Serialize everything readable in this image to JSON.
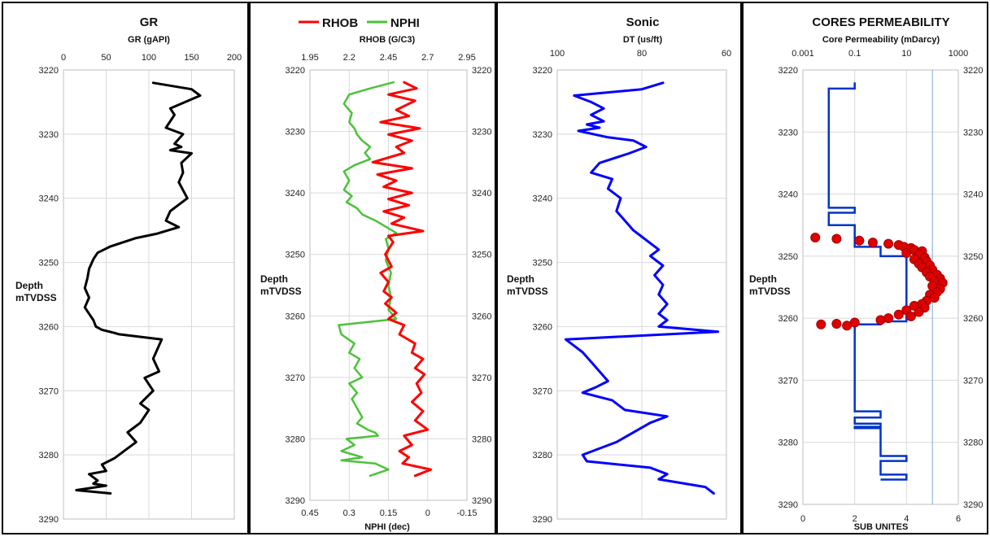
{
  "colors": {
    "gr": "#000000",
    "rhob": "#ff0000",
    "nphi": "#4cc23a",
    "sonic": "#0000ff",
    "perm_line": "#0033cc",
    "perm_points": "#e00000",
    "perm_points_edge": "#a00000",
    "grid": "#d9d9d9",
    "border": "#000000"
  },
  "chart_data": [
    {
      "type": "line",
      "title": "GR",
      "xlabel": "GR (gAPI)",
      "ylabel": "Depth\nmTVDSS",
      "xlim": [
        0,
        200
      ],
      "xticks": [
        "0",
        "50",
        "100",
        "150",
        "200"
      ],
      "ylim": [
        3220,
        3290
      ],
      "yticks": [
        "3220",
        "3230",
        "3240",
        "3250",
        "3260",
        "3270",
        "3280",
        "3290"
      ],
      "grid": true,
      "series": [
        {
          "name": "GR",
          "x": [
            105,
            150,
            160,
            125,
            130,
            120,
            140,
            130,
            138,
            125,
            150,
            138,
            140,
            135,
            145,
            125,
            120,
            135,
            110,
            85,
            55,
            40,
            35,
            30,
            28,
            25,
            30,
            25,
            30,
            35,
            38,
            45,
            60,
            65,
            115,
            105,
            112,
            95,
            105,
            90,
            100,
            90,
            75,
            85,
            70,
            60,
            45,
            50,
            30,
            40,
            35,
            50,
            15,
            55
          ],
          "y": [
            3222,
            3223,
            3224,
            3226,
            3227,
            3229,
            3230,
            3231.5,
            3232,
            3232.5,
            3233,
            3234.5,
            3236,
            3237.5,
            3240,
            3242,
            3243.5,
            3244.5,
            3245.5,
            3246.2,
            3247.5,
            3248.5,
            3249.5,
            3251,
            3252.5,
            3254,
            3255.5,
            3257,
            3258,
            3259,
            3260,
            3260.5,
            3261,
            3261.2,
            3262,
            3265,
            3267,
            3268,
            3270,
            3272,
            3273,
            3275,
            3276.5,
            3278,
            3279.5,
            3280.5,
            3281.5,
            3282.5,
            3283,
            3284,
            3284.5,
            3284.8,
            3285.5,
            3286
          ]
        }
      ]
    },
    {
      "type": "line",
      "legend": [
        "RHOB",
        "NPHI"
      ],
      "legend_position": "top",
      "xlabel": "RHOB (G/C3)",
      "xlabel_bottom": "NPHI (dec)",
      "ylabel": "Depth\nmTVDSS",
      "xlim_top": [
        1.95,
        2.95
      ],
      "xticks_top": [
        "1.95",
        "2.2",
        "2.45",
        "2.7",
        "2.95"
      ],
      "xlim_bottom": [
        0.45,
        -0.15
      ],
      "xticks_bottom": [
        "0.45",
        "0.3",
        "0.15",
        "0",
        "-0.15"
      ],
      "ylim": [
        3220,
        3290
      ],
      "yticks": [
        "3220",
        "3230",
        "3240",
        "3250",
        "3260",
        "3270",
        "3280",
        "3290"
      ],
      "grid": true,
      "series": [
        {
          "name": "RHOB",
          "axis": "top",
          "x": [
            2.55,
            2.63,
            2.45,
            2.62,
            2.5,
            2.58,
            2.4,
            2.65,
            2.45,
            2.6,
            2.5,
            2.55,
            2.35,
            2.6,
            2.38,
            2.5,
            2.42,
            2.6,
            2.45,
            2.58,
            2.42,
            2.55,
            2.47,
            2.67,
            2.45,
            2.48,
            2.43,
            2.47,
            2.4,
            2.45,
            2.42,
            2.47,
            2.43,
            2.5,
            2.45,
            2.55,
            2.52,
            2.62,
            2.6,
            2.67,
            2.62,
            2.68,
            2.63,
            2.66,
            2.6,
            2.67,
            2.62,
            2.7,
            2.55,
            2.6,
            2.52,
            2.58,
            2.54,
            2.72,
            2.62
          ],
          "y": [
            3222,
            3223,
            3224,
            3225,
            3226.5,
            3227.5,
            3228.5,
            3229.5,
            3230.5,
            3231.5,
            3232.5,
            3233.5,
            3235,
            3236,
            3237,
            3238,
            3239,
            3240,
            3241,
            3242,
            3243,
            3244,
            3245,
            3246.2,
            3247,
            3248,
            3250,
            3252,
            3253,
            3254.5,
            3256,
            3257,
            3258,
            3259.5,
            3260.5,
            3261.5,
            3263,
            3264.5,
            3266,
            3267,
            3268.5,
            3269.5,
            3271,
            3272.5,
            3274,
            3275.5,
            3277,
            3278.5,
            3279.5,
            3281,
            3282,
            3283,
            3284,
            3285,
            3286
          ]
        },
        {
          "name": "NPHI",
          "axis": "bottom",
          "x": [
            0.13,
            0.22,
            0.3,
            0.32,
            0.29,
            0.3,
            0.28,
            0.27,
            0.25,
            0.22,
            0.24,
            0.22,
            0.28,
            0.32,
            0.3,
            0.32,
            0.29,
            0.31,
            0.27,
            0.25,
            0.2,
            0.16,
            0.12,
            0.16,
            0.15,
            0.16,
            0.14,
            0.15,
            0.14,
            0.15,
            0.12,
            0.34,
            0.33,
            0.28,
            0.3,
            0.26,
            0.28,
            0.25,
            0.3,
            0.27,
            0.29,
            0.27,
            0.25,
            0.27,
            0.23,
            0.2,
            0.19,
            0.31,
            0.28,
            0.33,
            0.25,
            0.33,
            0.2,
            0.15,
            0.22
          ],
          "y": [
            3222,
            3223,
            3224,
            3225.5,
            3227,
            3228.5,
            3229.5,
            3230.5,
            3231.5,
            3232.5,
            3233.5,
            3234.5,
            3235.5,
            3236.5,
            3238,
            3239.5,
            3240.5,
            3241.5,
            3242.5,
            3243.5,
            3244.5,
            3245.5,
            3246.5,
            3247.5,
            3249,
            3251,
            3253,
            3255,
            3257,
            3259,
            3260.5,
            3261.5,
            3263,
            3264.5,
            3266,
            3267,
            3268.5,
            3270,
            3271,
            3272.5,
            3273.5,
            3275,
            3276.5,
            3277.5,
            3278.5,
            3279,
            3279.5,
            3280,
            3281,
            3282,
            3283,
            3283.5,
            3284,
            3285,
            3286
          ]
        }
      ]
    },
    {
      "type": "line",
      "title": "Sonic",
      "xlabel": "DT (us/ft)",
      "ylabel": "Depth\nmTVDSS",
      "xlim": [
        100,
        60
      ],
      "xticks": [
        "100",
        "80",
        "60"
      ],
      "ylim": [
        3220,
        3290
      ],
      "yticks": [
        "3220",
        "3230",
        "3240",
        "3250",
        "3260",
        "3270",
        "3280",
        "3290"
      ],
      "grid": true,
      "series": [
        {
          "name": "Sonic",
          "x": [
            75,
            80,
            96,
            92,
            89,
            92,
            89,
            93,
            90,
            95,
            88,
            82,
            79,
            83,
            90,
            92,
            87,
            88,
            85,
            86,
            84,
            82,
            80,
            78,
            76,
            78,
            75,
            77,
            75,
            76,
            74,
            76,
            74,
            76,
            62,
            98,
            96,
            94,
            92,
            90,
            88,
            91,
            94,
            87,
            84,
            74,
            78,
            86,
            94,
            93,
            78,
            74,
            76,
            65,
            63
          ],
          "y": [
            3222,
            3223,
            3224,
            3225,
            3226,
            3227,
            3228,
            3228.5,
            3229,
            3229.5,
            3230.5,
            3231,
            3232,
            3233,
            3234.5,
            3236,
            3237,
            3238.5,
            3240,
            3242,
            3243.5,
            3245,
            3246,
            3247,
            3248,
            3249,
            3250.5,
            3252,
            3253.5,
            3255,
            3256.5,
            3258,
            3259,
            3260,
            3260.8,
            3262,
            3263,
            3264,
            3265.5,
            3267,
            3268.5,
            3269.5,
            3270.3,
            3271.5,
            3273,
            3274,
            3275,
            3278,
            3280,
            3281,
            3282,
            3283,
            3283.8,
            3285,
            3286
          ]
        }
      ]
    },
    {
      "type": "scatter",
      "title": "CORES PERMEABILITY",
      "xlabel": "Core Permeability (mDarcy)",
      "xlabel_bottom": "SUB UNITES",
      "ylabel": "Depth\nmTVDSS",
      "xscale_top": "log",
      "xlim_top": [
        0.001,
        1000
      ],
      "xticks_top": [
        "0.001",
        "0.1",
        "10",
        "1000"
      ],
      "xlim_bottom": [
        0,
        6
      ],
      "xticks_bottom": [
        "0",
        "2",
        "4",
        "6"
      ],
      "ylim": [
        3220,
        3290
      ],
      "yticks": [
        "3220",
        "3230",
        "3240",
        "3250",
        "3260",
        "3270",
        "3280",
        "3290"
      ],
      "grid": true,
      "series": [
        {
          "name": "Sub unites",
          "axis": "bottom",
          "kind": "step-line",
          "x": [
            2,
            1,
            1,
            2,
            1,
            1,
            2,
            2,
            3,
            4,
            4,
            3,
            2,
            2,
            3,
            2,
            3,
            2,
            3,
            3,
            4,
            3,
            3,
            4,
            3
          ],
          "y": [
            3222,
            3223,
            3242,
            3242.2,
            3243,
            3245,
            3245,
            3247.5,
            3248.5,
            3250,
            3259.5,
            3260.5,
            3261,
            3274.5,
            3275,
            3276,
            3277,
            3277.5,
            3277.7,
            3282,
            3282.2,
            3283,
            3284.5,
            3285.2,
            3286
          ]
        },
        {
          "name": "Core permeability",
          "axis": "top",
          "kind": "points",
          "x": [
            0.003,
            0.02,
            0.15,
            0.5,
            2,
            5,
            8,
            15,
            20,
            40,
            10,
            30,
            50,
            20,
            60,
            30,
            80,
            40,
            100,
            60,
            150,
            80,
            200,
            120,
            250,
            100,
            200,
            150,
            80,
            120,
            60,
            40,
            20,
            50,
            10,
            30,
            5,
            15,
            2,
            1,
            0.1,
            0.02,
            0.005,
            0.05
          ],
          "y": [
            3247,
            3247.2,
            3247.5,
            3247.8,
            3248,
            3248.2,
            3248.5,
            3248.7,
            3249,
            3249.2,
            3249.5,
            3249.8,
            3250.2,
            3250.5,
            3250.8,
            3251.2,
            3251.5,
            3251.8,
            3252.2,
            3252.6,
            3253,
            3253.3,
            3253.6,
            3254,
            3254.3,
            3254.8,
            3255.3,
            3255.8,
            3256.2,
            3256.7,
            3257.2,
            3257.7,
            3258,
            3258.3,
            3258.7,
            3259,
            3259.4,
            3259.7,
            3260,
            3260.3,
            3260.7,
            3260.9,
            3261,
            3261.2
          ]
        }
      ]
    }
  ]
}
